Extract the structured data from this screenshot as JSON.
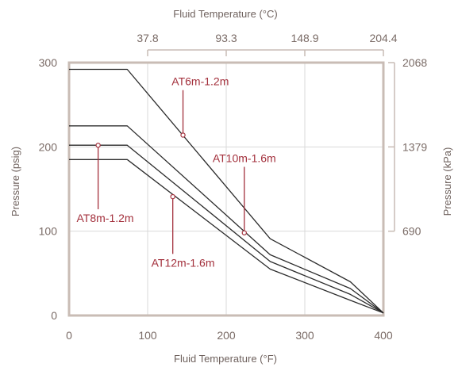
{
  "chart_data": {
    "type": "line",
    "xlabel": "Fluid Temperature (°F)",
    "ylabel": "Pressure (psig)",
    "x2label": "Fluid Temperature (°C)",
    "y2label": "Pressure (kPa)",
    "xlim": [
      0,
      400
    ],
    "ylim": [
      0,
      300
    ],
    "x_ticks": [
      "0",
      "100",
      "200",
      "300",
      "400"
    ],
    "y_ticks": [
      "0",
      "100",
      "200",
      "300"
    ],
    "x2_ticks": [
      {
        "label": "37.8",
        "at": 100
      },
      {
        "label": "93.3",
        "at": 200
      },
      {
        "label": "148.9",
        "at": 300
      },
      {
        "label": "204.4",
        "at": 400
      }
    ],
    "y2_ticks": [
      {
        "label": "690",
        "at": 100
      },
      {
        "label": "1379",
        "at": 200
      },
      {
        "label": "2068",
        "at": 300
      }
    ],
    "grid": true,
    "colors": {
      "lines": "#2b2b2b",
      "annotation": "#a3303c",
      "frame": "#c9bcb5",
      "grid": "#d9d9d9"
    },
    "series": [
      {
        "points": [
          [
            0,
            292
          ],
          [
            74,
            292
          ],
          [
            256,
            91
          ],
          [
            358,
            40
          ],
          [
            400,
            3
          ]
        ]
      },
      {
        "points": [
          [
            0,
            225
          ],
          [
            74,
            225
          ],
          [
            256,
            72
          ],
          [
            358,
            32
          ],
          [
            400,
            3
          ]
        ]
      },
      {
        "points": [
          [
            0,
            202
          ],
          [
            74,
            202
          ],
          [
            256,
            64
          ],
          [
            358,
            25
          ],
          [
            400,
            3
          ]
        ]
      },
      {
        "points": [
          [
            0,
            185
          ],
          [
            74,
            185
          ],
          [
            256,
            55
          ],
          [
            358,
            18
          ],
          [
            400,
            3
          ]
        ]
      }
    ],
    "annotations": [
      {
        "text": "AT6m-1.2m",
        "point": [
          145,
          214
        ],
        "label_at": [
          167,
          273
        ],
        "anchor": "middle"
      },
      {
        "text": "AT10m-1.6m",
        "point": [
          223,
          98
        ],
        "label_at": [
          223,
          182
        ],
        "anchor": "middle"
      },
      {
        "text": "AT8m-1.2m",
        "point": [
          37,
          202
        ],
        "label_at": [
          46,
          111
        ],
        "anchor": "middle"
      },
      {
        "text": "AT12m-1.6m",
        "point": [
          132,
          141
        ],
        "label_at": [
          145,
          58
        ],
        "anchor": "middle"
      }
    ]
  }
}
